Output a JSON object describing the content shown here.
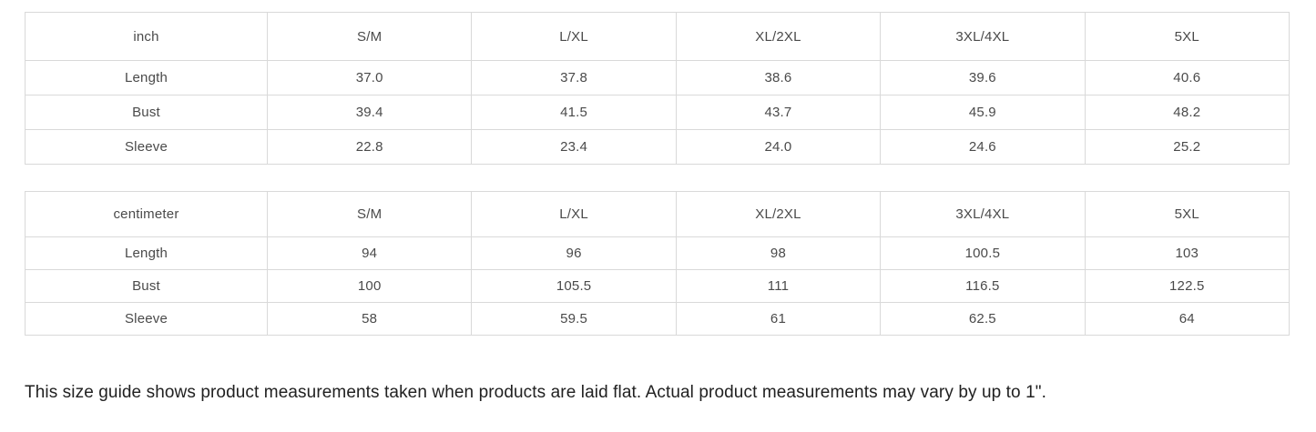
{
  "tables": [
    {
      "unit": "inch",
      "columns": [
        "S/M",
        "L/XL",
        "XL/2XL",
        "3XL/4XL",
        "5XL"
      ],
      "rows": [
        {
          "label": "Length",
          "values": [
            "37.0",
            "37.8",
            "38.6",
            "39.6",
            "40.6"
          ]
        },
        {
          "label": "Bust",
          "values": [
            "39.4",
            "41.5",
            "43.7",
            "45.9",
            "48.2"
          ]
        },
        {
          "label": "Sleeve",
          "values": [
            "22.8",
            "23.4",
            "24.0",
            "24.6",
            "25.2"
          ]
        }
      ]
    },
    {
      "unit": "centimeter",
      "columns": [
        "S/M",
        "L/XL",
        "XL/2XL",
        "3XL/4XL",
        "5XL"
      ],
      "rows": [
        {
          "label": "Length",
          "values": [
            "94",
            "96",
            "98",
            "100.5",
            "103"
          ]
        },
        {
          "label": "Bust",
          "values": [
            "100",
            "105.5",
            "111",
            "116.5",
            "122.5"
          ]
        },
        {
          "label": "Sleeve",
          "values": [
            "58",
            "59.5",
            "61",
            "62.5",
            "64"
          ]
        }
      ]
    }
  ],
  "footer": {
    "note": "This size guide shows product measurements taken when products are laid flat. Actual product measurements may vary by up to 1\"."
  },
  "colors": {
    "border": "#d9d9d9",
    "table_text": "#4a4a4a",
    "note_text": "#212121",
    "background": "#ffffff"
  }
}
